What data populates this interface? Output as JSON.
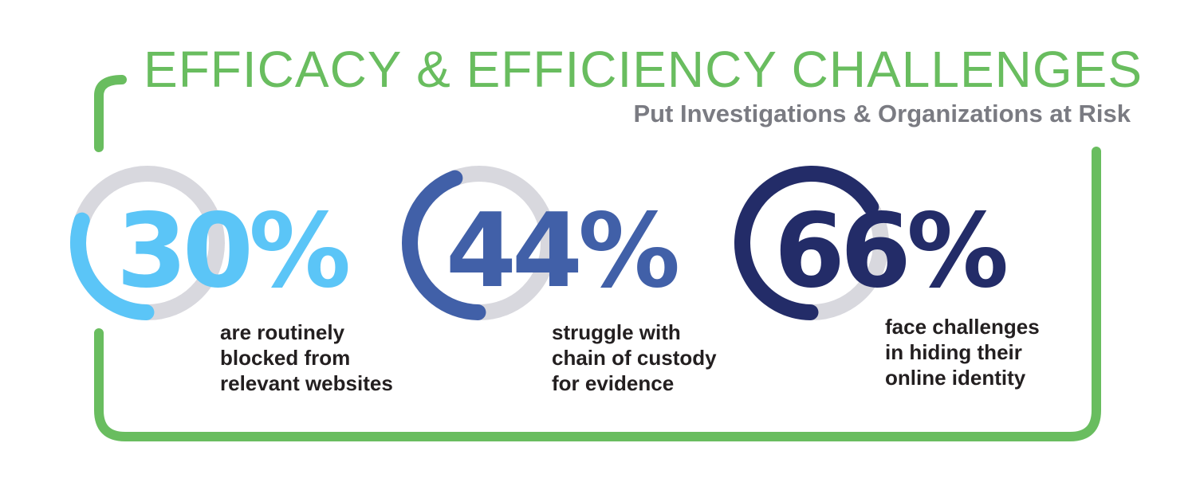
{
  "header": {
    "title": "EFFICACY & EFFICIENCY CHALLENGES",
    "subtitle": "Put Investigations & Organizations at Risk"
  },
  "colors": {
    "frame": "#69bd5f",
    "track": "#d8d8de",
    "text": "#231f20",
    "subtitle": "#7a7b82"
  },
  "chart_data": {
    "type": "gauge",
    "title": "EFFICACY & EFFICIENCY CHALLENGES",
    "subtitle": "Put Investigations & Organizations at Risk",
    "items": [
      {
        "value": 30,
        "label": "30%",
        "color": "#5bc5f7",
        "description": [
          "are routinely",
          "blocked from",
          "relevant websites"
        ]
      },
      {
        "value": 44,
        "label": "44%",
        "color": "#4160a8",
        "description": [
          "struggle with",
          "chain of custody",
          "for evidence"
        ]
      },
      {
        "value": 66,
        "label": "66%",
        "color": "#232c68",
        "description": [
          "face challenges",
          "in hiding their",
          "online identity"
        ]
      }
    ]
  }
}
